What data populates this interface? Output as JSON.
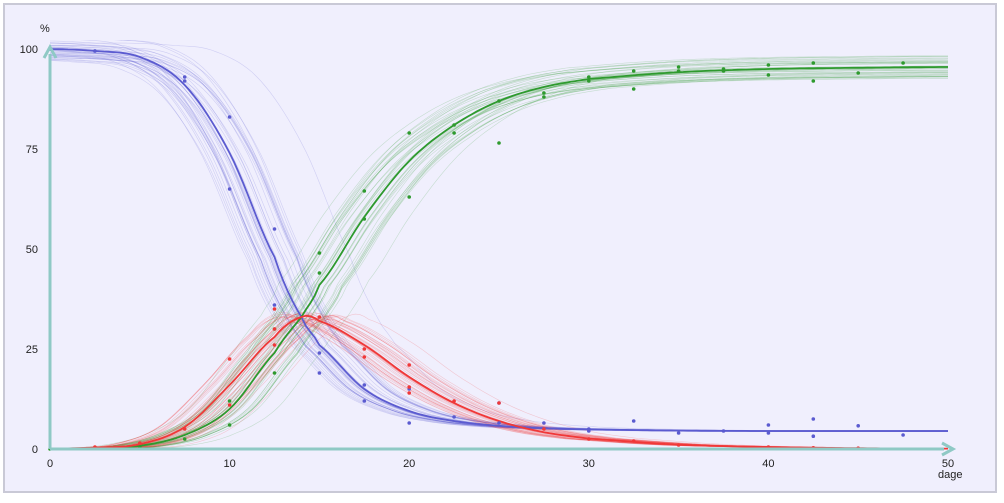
{
  "chart_data": {
    "type": "line",
    "title": "",
    "xlabel": "dage",
    "ylabel": "%",
    "xlim": [
      0,
      50
    ],
    "ylim": [
      0,
      100
    ],
    "xticks": [
      0,
      10,
      20,
      30,
      40,
      50
    ],
    "yticks": [
      0,
      25,
      50,
      75,
      100
    ],
    "grid": false,
    "legend": "none",
    "colors": {
      "blue": "#5b5bd0",
      "green": "#2e9a2e",
      "red": "#f03838",
      "axis": "#8fc9c5",
      "background": "#f0effd"
    },
    "series": [
      {
        "color": "blue",
        "x": [
          0,
          2.5,
          5,
          7.5,
          10,
          12.5,
          14,
          15,
          17.5,
          20,
          22.5,
          25,
          27.5,
          30,
          35,
          40,
          45,
          50
        ],
        "y": [
          100,
          99.5,
          98,
          91,
          74,
          48,
          33,
          26,
          15,
          9.5,
          7,
          5.8,
          5.2,
          4.9,
          4.6,
          4.5,
          4.5,
          4.5
        ]
      },
      {
        "color": "green",
        "x": [
          0,
          2.5,
          5,
          7.5,
          10,
          12.5,
          14,
          15,
          17.5,
          20,
          22.5,
          25,
          27.5,
          30,
          35,
          40,
          45,
          50
        ],
        "y": [
          0,
          0.2,
          0.8,
          3.5,
          10,
          24,
          33,
          41,
          58,
          72,
          81,
          87,
          90.5,
          92.5,
          94.2,
          95,
          95.3,
          95.5
        ]
      },
      {
        "color": "red",
        "x": [
          0,
          2.5,
          5,
          7.5,
          10,
          12.5,
          14,
          15,
          17.5,
          20,
          22.5,
          25,
          27.5,
          30,
          35,
          40,
          45,
          50
        ],
        "y": [
          0,
          0.3,
          1.2,
          5.5,
          16,
          28,
          33,
          32,
          26,
          18,
          11.5,
          7,
          4.2,
          2.6,
          1.1,
          0.5,
          0.2,
          0.1
        ]
      }
    ],
    "observations": [
      {
        "color": "blue",
        "points": [
          [
            0,
            100
          ],
          [
            2.5,
            99.5
          ],
          [
            7.5,
            93
          ],
          [
            7.5,
            92
          ],
          [
            10,
            83
          ],
          [
            10,
            65
          ],
          [
            12.5,
            55
          ],
          [
            12.5,
            36
          ],
          [
            15,
            24
          ],
          [
            15,
            19
          ],
          [
            17.5,
            16
          ],
          [
            17.5,
            12
          ],
          [
            20,
            15
          ],
          [
            20,
            6.5
          ],
          [
            22.5,
            8
          ],
          [
            25,
            11.5
          ],
          [
            25,
            6.5
          ],
          [
            27.5,
            6.5
          ],
          [
            30,
            5
          ],
          [
            30,
            4.5
          ],
          [
            32.5,
            7
          ],
          [
            35,
            4
          ],
          [
            37.5,
            4.5
          ],
          [
            40,
            6
          ],
          [
            40,
            4
          ],
          [
            42.5,
            7.5
          ],
          [
            42.5,
            3.2
          ],
          [
            45,
            5.8
          ],
          [
            47.5,
            3.5
          ]
        ]
      },
      {
        "color": "green",
        "points": [
          [
            0,
            0
          ],
          [
            5,
            0.5
          ],
          [
            7.5,
            2.5
          ],
          [
            10,
            12
          ],
          [
            10,
            6
          ],
          [
            12.5,
            30
          ],
          [
            12.5,
            19
          ],
          [
            15,
            49
          ],
          [
            15,
            44
          ],
          [
            17.5,
            64.5
          ],
          [
            17.5,
            57.5
          ],
          [
            20,
            79
          ],
          [
            20,
            63
          ],
          [
            22.5,
            81
          ],
          [
            22.5,
            79
          ],
          [
            25,
            76.5
          ],
          [
            25,
            87
          ],
          [
            27.5,
            89
          ],
          [
            27.5,
            88
          ],
          [
            30,
            93
          ],
          [
            30,
            92
          ],
          [
            32.5,
            94.5
          ],
          [
            32.5,
            90
          ],
          [
            35,
            95.5
          ],
          [
            35,
            94.5
          ],
          [
            37.5,
            95
          ],
          [
            37.5,
            94.5
          ],
          [
            40,
            96
          ],
          [
            40,
            93.5
          ],
          [
            42.5,
            96.5
          ],
          [
            42.5,
            92
          ],
          [
            45,
            94
          ],
          [
            47.5,
            96.5
          ]
        ]
      },
      {
        "color": "red",
        "points": [
          [
            2.5,
            0.5
          ],
          [
            5,
            1.5
          ],
          [
            7.5,
            5
          ],
          [
            10,
            22.5
          ],
          [
            10,
            11
          ],
          [
            12.5,
            35
          ],
          [
            12.5,
            30
          ],
          [
            12.5,
            26
          ],
          [
            15,
            33
          ],
          [
            17.5,
            25
          ],
          [
            17.5,
            23
          ],
          [
            20,
            21
          ],
          [
            20,
            15.5
          ],
          [
            20,
            14
          ],
          [
            22.5,
            12
          ],
          [
            25,
            11.5
          ],
          [
            27.5,
            5
          ],
          [
            30,
            2.5
          ],
          [
            32.5,
            2
          ],
          [
            35,
            1
          ],
          [
            40,
            0.5
          ],
          [
            42.5,
            0.3
          ],
          [
            45,
            0.2
          ]
        ]
      }
    ]
  }
}
